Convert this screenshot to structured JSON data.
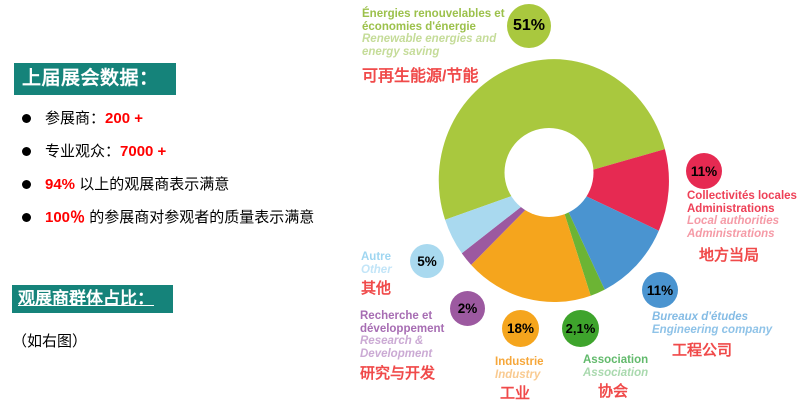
{
  "left_panel": {
    "header1": "上届展会数据：",
    "bullets": [
      {
        "pre": "参展商：",
        "val": "200 +",
        "post": ""
      },
      {
        "pre": "专业观众：",
        "val": "7000 +",
        "post": ""
      },
      {
        "pre": "",
        "val": "94%",
        "post": " 以上的观展商表示满意"
      },
      {
        "pre": "",
        "val": "100％",
        "post": " 的参展商对参观者的质量表示满意"
      }
    ],
    "header2": "观展商群体占比：",
    "note": "（如右图）"
  },
  "colors": {
    "header_teal": "#15837a",
    "highlight_red": "#ff0000",
    "chinese_label_red": "#f04a4a"
  },
  "chart_data": {
    "type": "pie",
    "donut": true,
    "unit": "%",
    "legend_position": "around",
    "start_angle_deg": 251.3,
    "segments": [
      {
        "name": "renewables",
        "fr": "Énergies renouvelables et\néconomies d'énergie",
        "en": "Renewable energies and\nenergy saving",
        "zh": "可再生能源/节能",
        "value": 51,
        "pct_label": "51%",
        "color": "#a9c83e",
        "badge_color": "#a9c83e",
        "label_color": "#9cc14b",
        "sub_color": "#c5dc99"
      },
      {
        "name": "local-authorities",
        "fr": "Collectivités locales\nAdministrations",
        "en": "Local authorities\nAdministrations",
        "zh": "地方当局",
        "value": 11,
        "pct_label": "11%",
        "color": "#e62a52",
        "badge_color": "#e62a52",
        "label_color": "#ee4057",
        "sub_color": "#f59aa6"
      },
      {
        "name": "engineering",
        "fr": "Bureaux d'études",
        "en": "Engineering company",
        "zh": "工程公司",
        "value": 11,
        "pct_label": "11%",
        "color": "#4a94d0",
        "badge_color": "#4a94d0",
        "label_color": "#85bce5",
        "sub_color": "#8fc3e8"
      },
      {
        "name": "association",
        "fr": "Association",
        "en": "Association",
        "zh": "协会",
        "value": 2.1,
        "pct_label": "2,1%",
        "color": "#6cb434",
        "badge_color": "#3ea42c",
        "label_color": "#62ba6c",
        "sub_color": "#a9d9ae"
      },
      {
        "name": "industry",
        "fr": "Industrie",
        "en": "Industry",
        "zh": "工业",
        "value": 18,
        "pct_label": "18%",
        "color": "#f5a51d",
        "badge_color": "#f5a51d",
        "label_color": "#f6a73a",
        "sub_color": "#f9ca90"
      },
      {
        "name": "research-development",
        "fr": "Recherche et\ndéveloppement",
        "en": "Research &\nDevelopment",
        "zh": "研究与开发",
        "value": 2,
        "pct_label": "2%",
        "color": "#9c59a0",
        "badge_color": "#9c59a0",
        "label_color": "#a76db3",
        "sub_color": "#cbaad4"
      },
      {
        "name": "other",
        "fr": "Autre",
        "en": "Other",
        "zh": "其他",
        "value": 5,
        "pct_label": "5%",
        "color": "#a9d9ef",
        "badge_color": "#a9d9ef",
        "label_color": "#9fd6f1",
        "sub_color": "#c2e5f8"
      }
    ]
  }
}
